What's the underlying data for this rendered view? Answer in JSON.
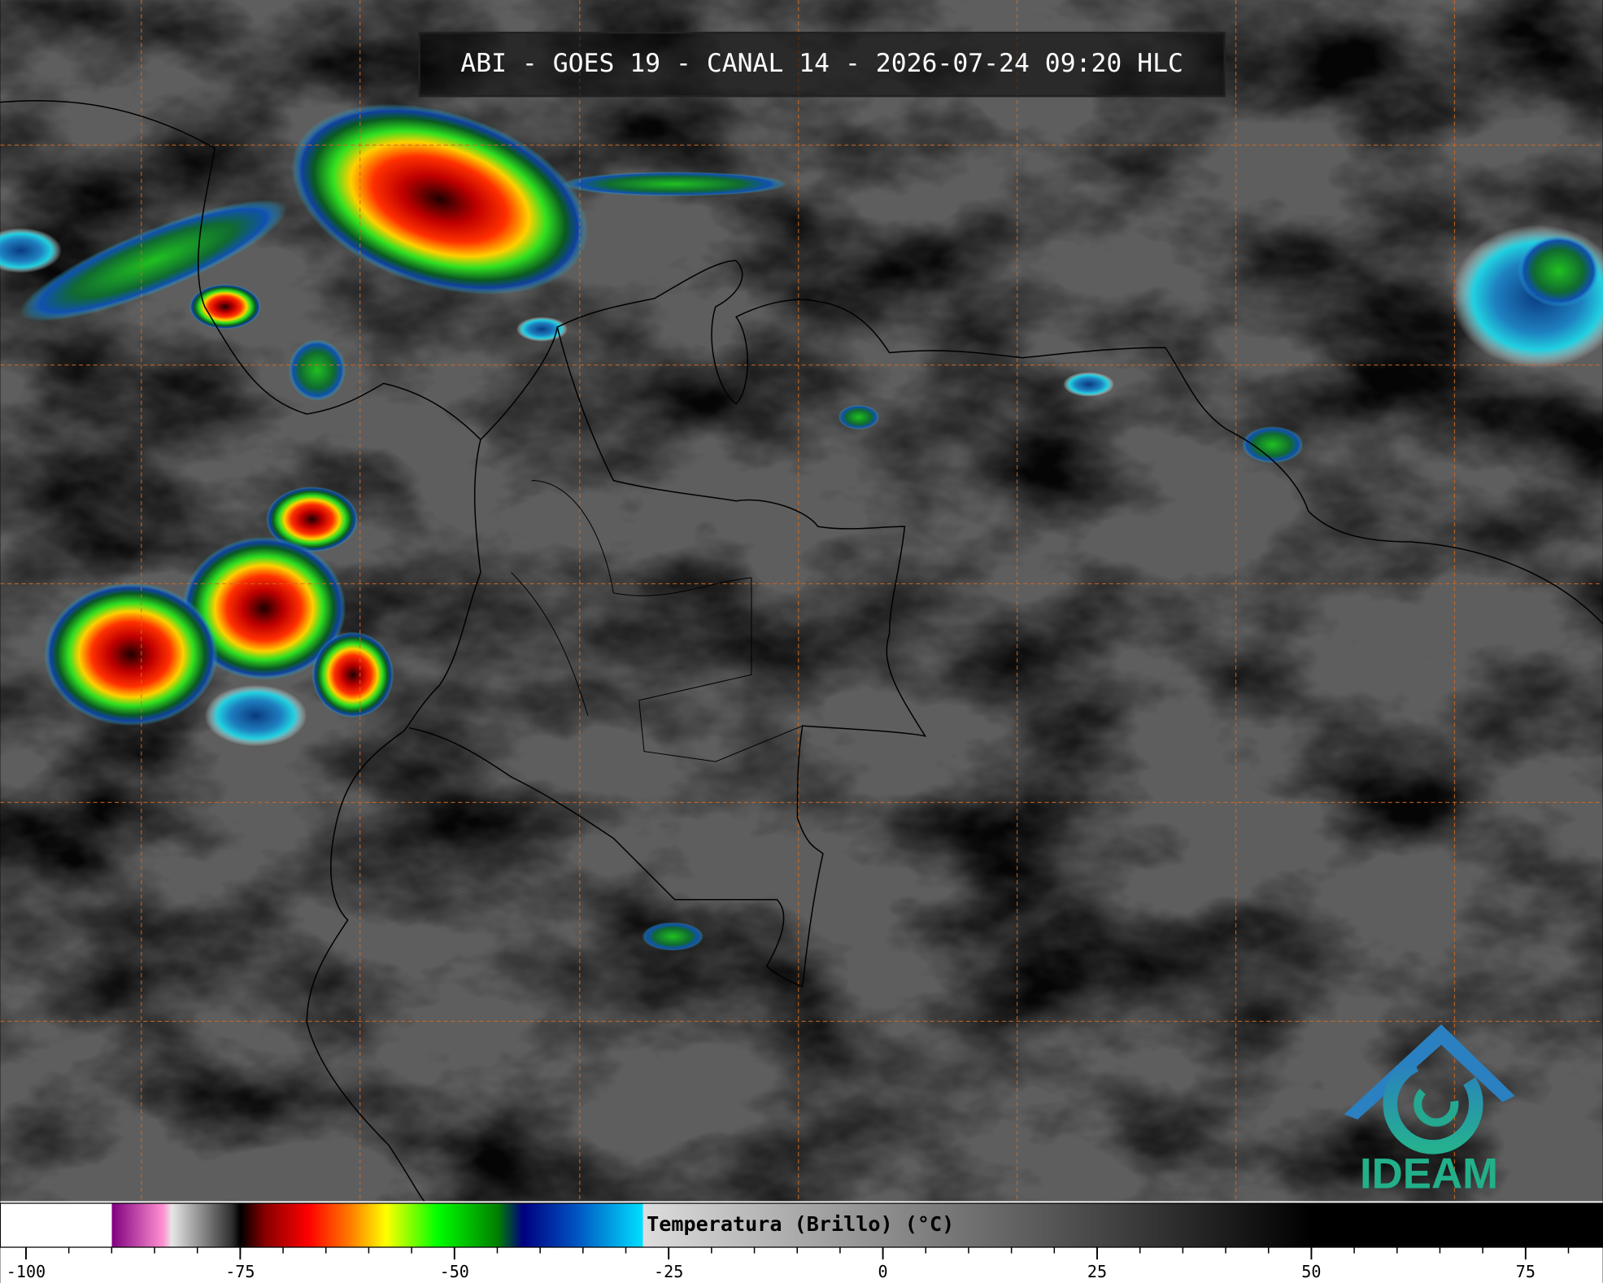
{
  "header": {
    "title": "ABI - GOES 19 - CANAL 14 - 2026-07-24 09:20 HLC"
  },
  "colorbar": {
    "label": "Temperatura (Brillo) (°C)",
    "range": [
      -103,
      84
    ],
    "ticks": [
      -100,
      -75,
      -50,
      -25,
      0,
      25,
      50,
      75
    ],
    "minor_tick_step": 5,
    "color_stops": [
      [
        -103,
        "#ffffff"
      ],
      [
        -90,
        "#ffffff"
      ],
      [
        -90,
        "#800080"
      ],
      [
        -84,
        "#ff90d0"
      ],
      [
        -83,
        "#e6e6e6"
      ],
      [
        -76,
        "#303030"
      ],
      [
        -75,
        "#000000"
      ],
      [
        -72,
        "#8b0000"
      ],
      [
        -67,
        "#ff0000"
      ],
      [
        -62,
        "#ff8000"
      ],
      [
        -58,
        "#ffff00"
      ],
      [
        -52,
        "#00ff00"
      ],
      [
        -45,
        "#008000"
      ],
      [
        -42,
        "#000080"
      ],
      [
        -36,
        "#0050c0"
      ],
      [
        -28,
        "#00e0ff"
      ],
      [
        -28,
        "#dddddd"
      ],
      [
        50,
        "#000000"
      ],
      [
        84,
        "#000000"
      ]
    ]
  },
  "logo": {
    "text": "IDEAM"
  }
}
